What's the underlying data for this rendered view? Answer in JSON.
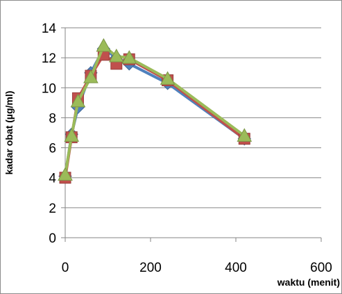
{
  "chart_data": {
    "type": "line",
    "title": "",
    "xlabel": "waktu (menit)",
    "ylabel": "kadar obat (µg/ml)",
    "xlim": [
      0,
      600
    ],
    "ylim": [
      0,
      14
    ],
    "xticks": [
      0,
      200,
      400,
      600
    ],
    "yticks": [
      0,
      2,
      4,
      6,
      8,
      10,
      12,
      14
    ],
    "grid": "horizontal",
    "legend": "none",
    "series": [
      {
        "color": "#4f81bd",
        "marker": "diamond",
        "x": [
          0,
          15,
          30,
          60,
          90,
          120,
          150,
          240,
          420
        ],
        "y": [
          4.1,
          6.9,
          8.7,
          11.0,
          12.6,
          12.0,
          11.6,
          10.3,
          6.6
        ]
      },
      {
        "color": "#c0504d",
        "marker": "square",
        "x": [
          0,
          15,
          30,
          60,
          90,
          120,
          150,
          240,
          420
        ],
        "y": [
          4.0,
          6.7,
          9.3,
          10.8,
          12.2,
          11.6,
          11.9,
          10.5,
          6.6
        ]
      },
      {
        "color": "#9bbb59",
        "marker": "triangle",
        "x": [
          0,
          15,
          30,
          60,
          90,
          120,
          150,
          240,
          420
        ],
        "y": [
          4.2,
          6.8,
          9.1,
          10.7,
          12.8,
          12.1,
          12.0,
          10.6,
          6.8
        ]
      }
    ]
  }
}
